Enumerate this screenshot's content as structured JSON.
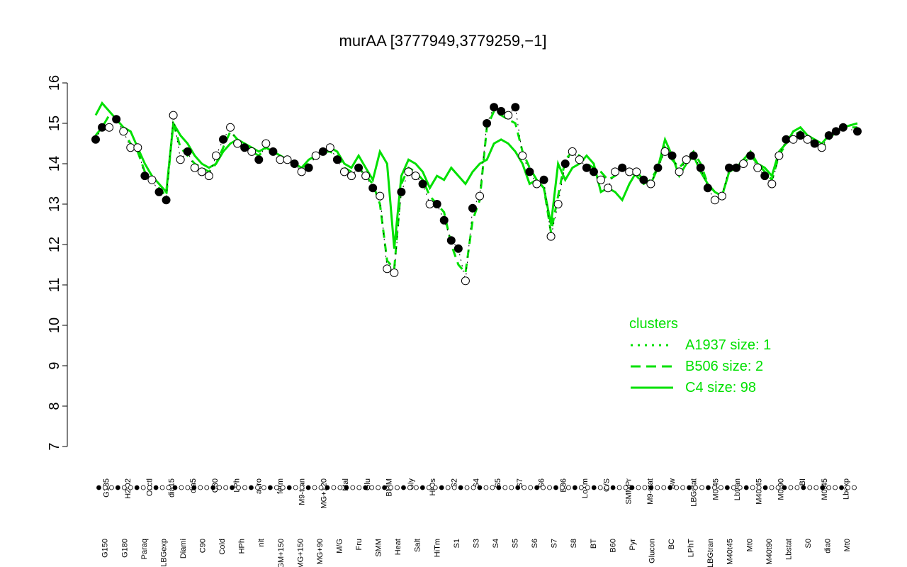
{
  "chart_data": {
    "type": "line",
    "title": "murAA [3777949,3779259,−1]",
    "xlabel": "",
    "ylabel": "",
    "ylim": [
      7,
      16
    ],
    "yticks": [
      7,
      8,
      9,
      10,
      11,
      12,
      13,
      14,
      15,
      16
    ],
    "colors": {
      "series": "#00e000",
      "points": "#000000"
    },
    "condition_labels_lower": [
      "G150",
      "G180",
      "Paraq",
      "LBGexp",
      "Diami",
      "C90",
      "Cold",
      "HPh",
      "nit",
      "GM+150",
      "MG+150",
      "MG+90",
      "M/G",
      "Fru",
      "SMM",
      "Heat",
      "Salt",
      "HiTm",
      "S1",
      "S3",
      "S4",
      "S5",
      "S6",
      "S7",
      "S8",
      "BT",
      "B60",
      "Pyr",
      "Glucon",
      "BC",
      "LPhT",
      "LBGtran",
      "M40t45",
      "Mt0",
      "M40t90",
      "Lbstat",
      "S0",
      "dia0",
      "Mt0"
    ],
    "condition_labels_upper": [
      "G135",
      "H2O2",
      "Oxctl",
      "dia15",
      "dia5",
      "C30",
      "LPh",
      "aero",
      "ferm",
      "M9-tran",
      "MG+120",
      "Mal",
      "Glu",
      "BMM",
      "Gly",
      "HiOs",
      "S2",
      "S4",
      "S5",
      "S7",
      "S6",
      "B36",
      "LoTm",
      "G/S",
      "SMMPr",
      "M9-stat",
      "Sw",
      "LBGstat",
      "M0t45",
      "Lbtran",
      "M40t45",
      "M0t90",
      "BI",
      "M0t45",
      "Lbexp"
    ],
    "series": [
      {
        "name": "C4 size: 98",
        "style": "solid",
        "x": [
          1,
          10,
          20,
          30,
          40,
          50,
          60,
          70,
          80,
          90,
          100,
          110,
          120,
          130,
          140,
          150,
          160,
          170,
          180,
          190,
          200,
          210,
          220,
          230,
          240,
          250,
          260,
          270,
          280,
          290,
          300,
          310,
          320,
          330,
          340,
          350,
          360,
          370,
          380,
          390,
          400,
          410,
          420,
          430,
          440,
          450,
          460,
          470,
          480,
          490,
          500,
          510,
          520,
          530,
          540,
          550,
          560,
          570,
          580,
          590,
          600,
          610,
          620,
          630,
          640,
          650,
          660,
          670,
          680,
          690,
          700,
          710,
          720,
          730,
          740,
          750,
          760,
          770,
          780,
          790,
          800,
          810,
          820,
          830,
          840,
          850,
          860,
          870,
          880,
          890,
          900,
          910,
          920,
          930,
          940,
          950,
          960,
          970,
          980,
          990,
          1000,
          1010,
          1020,
          1030,
          1040,
          1050,
          1070
        ],
        "values": [
          15.2,
          15.5,
          15.3,
          15.1,
          14.9,
          14.8,
          14.4,
          14.0,
          13.7,
          13.5,
          13.3,
          15.0,
          14.7,
          14.5,
          14.2,
          14.0,
          13.9,
          14.0,
          14.3,
          14.5,
          14.6,
          14.5,
          14.4,
          14.3,
          14.4,
          14.3,
          14.2,
          14.1,
          14.0,
          13.9,
          14.1,
          14.2,
          14.3,
          14.4,
          14.3,
          14.0,
          13.9,
          14.2,
          13.9,
          13.6,
          14.3,
          14.0,
          11.9,
          13.7,
          14.1,
          14.0,
          13.8,
          13.4,
          13.7,
          13.6,
          13.9,
          13.7,
          13.5,
          13.8,
          14.0,
          14.1,
          14.5,
          14.6,
          14.5,
          14.3,
          14.0,
          13.5,
          13.6,
          13.4,
          12.5,
          14.0,
          13.6,
          13.9,
          14.0,
          14.2,
          14.0,
          13.3,
          13.4,
          13.3,
          13.1,
          13.5,
          13.8,
          13.6,
          13.5,
          13.9,
          14.6,
          14.2,
          13.7,
          14.0,
          14.2,
          13.8,
          13.5,
          13.3,
          13.2,
          13.8,
          13.9,
          14.1,
          14.3,
          14.0,
          13.9,
          13.7,
          14.3,
          14.5,
          14.8,
          14.9,
          14.7,
          14.6,
          14.5,
          14.7,
          14.8,
          14.9,
          15.0
        ]
      },
      {
        "name": "B506 size: 2",
        "style": "dashed",
        "x": [
          1,
          10,
          20,
          30,
          40,
          50,
          60,
          70,
          80,
          90,
          100,
          110,
          120,
          130,
          140,
          150,
          160,
          170,
          180,
          190,
          200,
          210,
          220,
          230,
          240,
          250,
          260,
          270,
          280,
          290,
          300,
          310,
          320,
          330,
          340,
          350,
          360,
          370,
          380,
          390,
          400,
          410,
          420,
          430,
          440,
          450,
          460,
          470,
          480,
          490,
          500,
          510,
          520,
          530,
          540,
          550,
          560,
          570,
          580,
          590,
          600,
          610,
          620,
          630,
          640,
          650,
          660,
          670,
          680,
          690,
          700,
          710,
          720,
          730,
          740,
          750,
          760,
          770,
          780,
          790,
          800,
          810,
          820,
          830,
          840,
          850,
          860,
          870,
          880,
          890,
          900,
          910,
          920,
          930,
          940,
          950,
          960,
          970,
          980,
          990,
          1000,
          1010,
          1020,
          1030,
          1040,
          1050,
          1070
        ],
        "values": [
          14.7,
          14.9,
          15.2,
          15.1,
          14.8,
          14.5,
          14.3,
          13.8,
          13.6,
          13.4,
          13.2,
          15.0,
          14.4,
          14.2,
          14.0,
          13.9,
          13.8,
          14.0,
          14.4,
          14.8,
          14.6,
          14.5,
          14.3,
          14.2,
          14.4,
          14.3,
          14.2,
          14.1,
          14.0,
          13.9,
          14.0,
          14.2,
          14.3,
          14.3,
          14.2,
          13.9,
          13.8,
          13.9,
          13.7,
          13.5,
          13.0,
          11.6,
          11.4,
          13.5,
          13.9,
          13.8,
          13.6,
          13.2,
          13.0,
          12.8,
          12.0,
          11.5,
          11.3,
          12.6,
          13.1,
          14.9,
          15.3,
          15.2,
          15.1,
          15.0,
          14.3,
          13.9,
          13.6,
          13.4,
          12.3,
          13.2,
          14.1,
          14.3,
          14.2,
          14.0,
          13.9,
          13.8,
          13.6,
          13.7,
          13.9,
          13.8,
          13.7,
          13.5,
          13.6,
          13.9,
          14.4,
          14.1,
          13.9,
          14.1,
          14.3,
          14.0,
          13.5,
          13.3,
          13.2,
          13.8,
          13.9,
          14.0,
          14.2,
          14.0,
          13.8,
          13.6,
          14.2,
          14.5,
          14.7,
          14.8,
          14.6,
          14.5,
          14.4,
          14.6,
          14.8,
          14.9,
          14.9
        ]
      },
      {
        "name": "A1937 size: 1",
        "style": "dotted",
        "x": [
          1,
          10,
          20,
          30,
          40,
          50,
          60,
          70,
          80,
          90,
          100,
          110,
          120,
          130,
          140,
          150,
          160,
          170,
          180,
          190,
          200,
          210,
          220,
          230,
          240,
          250,
          260,
          270,
          280,
          290,
          300,
          310,
          320,
          330,
          340,
          350,
          360,
          370,
          380,
          390,
          400,
          410,
          420,
          430,
          440,
          450,
          460,
          470,
          480,
          490,
          500,
          510,
          520,
          530,
          540,
          550,
          560,
          570,
          580,
          590,
          600,
          610,
          620,
          630,
          640,
          650,
          660,
          670,
          680,
          690,
          700,
          710,
          720,
          730,
          740,
          750,
          760,
          770,
          780,
          790,
          800,
          810,
          820,
          830,
          840,
          850,
          860,
          870,
          880,
          890,
          900,
          910,
          920,
          930,
          940,
          950,
          960,
          970,
          980,
          990,
          1000,
          1010,
          1020,
          1030,
          1040,
          1050,
          1070
        ],
        "values": [
          14.6,
          14.9,
          14.9,
          15.1,
          14.8,
          14.4,
          14.4,
          13.7,
          13.6,
          13.3,
          13.1,
          15.2,
          14.1,
          14.3,
          13.9,
          13.8,
          13.7,
          14.2,
          14.6,
          14.9,
          14.5,
          14.4,
          14.3,
          14.1,
          14.5,
          14.3,
          14.1,
          14.1,
          14.0,
          13.8,
          13.9,
          14.2,
          14.3,
          14.4,
          14.1,
          13.8,
          13.7,
          13.9,
          13.7,
          13.4,
          13.2,
          11.4,
          11.3,
          13.3,
          13.8,
          13.7,
          13.5,
          13.0,
          13.0,
          12.6,
          12.1,
          11.9,
          11.1,
          12.9,
          13.2,
          15.0,
          15.4,
          15.3,
          15.2,
          15.4,
          14.2,
          13.8,
          13.5,
          13.6,
          12.2,
          13.0,
          14.0,
          14.3,
          14.1,
          13.9,
          13.8,
          13.6,
          13.4,
          13.8,
          13.9,
          13.8,
          13.8,
          13.6,
          13.5,
          13.9,
          14.3,
          14.2,
          13.8,
          14.1,
          14.2,
          13.9,
          13.4,
          13.1,
          13.2,
          13.9,
          13.9,
          14.0,
          14.2,
          13.9,
          13.7,
          13.5,
          14.2,
          14.6,
          14.6,
          14.7,
          14.6,
          14.5,
          14.4,
          14.7,
          14.8,
          14.9,
          14.8
        ]
      }
    ],
    "points": {
      "x": [
        1,
        10,
        20,
        30,
        40,
        50,
        60,
        70,
        80,
        90,
        100,
        110,
        120,
        130,
        140,
        150,
        160,
        170,
        180,
        190,
        200,
        210,
        220,
        230,
        240,
        250,
        260,
        270,
        280,
        290,
        300,
        310,
        320,
        330,
        340,
        350,
        360,
        370,
        380,
        390,
        400,
        410,
        420,
        430,
        440,
        450,
        460,
        470,
        480,
        490,
        500,
        510,
        520,
        530,
        540,
        550,
        560,
        570,
        580,
        590,
        600,
        610,
        620,
        630,
        640,
        650,
        660,
        670,
        680,
        690,
        700,
        710,
        720,
        730,
        740,
        750,
        760,
        770,
        780,
        790,
        800,
        810,
        820,
        830,
        840,
        850,
        860,
        870,
        880,
        890,
        900,
        910,
        920,
        930,
        940,
        950,
        960,
        970,
        980,
        990,
        1000,
        1010,
        1020,
        1030,
        1040,
        1050,
        1070
      ],
      "values": [
        14.6,
        14.9,
        14.9,
        15.1,
        14.8,
        14.4,
        14.4,
        13.7,
        13.6,
        13.3,
        13.1,
        15.2,
        14.1,
        14.3,
        13.9,
        13.8,
        13.7,
        14.2,
        14.6,
        14.9,
        14.5,
        14.4,
        14.3,
        14.1,
        14.5,
        14.3,
        14.1,
        14.1,
        14.0,
        13.8,
        13.9,
        14.2,
        14.3,
        14.4,
        14.1,
        13.8,
        13.7,
        13.9,
        13.7,
        13.4,
        13.2,
        11.4,
        11.3,
        13.3,
        13.8,
        13.7,
        13.5,
        13.0,
        13.0,
        12.6,
        12.1,
        11.9,
        11.1,
        12.9,
        13.2,
        15.0,
        15.4,
        15.3,
        15.2,
        15.4,
        14.2,
        13.8,
        13.5,
        13.6,
        12.2,
        13.0,
        14.0,
        14.3,
        14.1,
        13.9,
        13.8,
        13.6,
        13.4,
        13.8,
        13.9,
        13.8,
        13.8,
        13.6,
        13.5,
        13.9,
        14.3,
        14.2,
        13.8,
        14.1,
        14.2,
        13.9,
        13.4,
        13.1,
        13.2,
        13.9,
        13.9,
        14.0,
        14.2,
        13.9,
        13.7,
        13.5,
        14.2,
        14.6,
        14.6,
        14.7,
        14.6,
        14.5,
        14.4,
        14.7,
        14.8,
        14.9,
        14.8
      ],
      "filled": [
        true,
        true,
        false,
        true,
        false,
        false,
        false,
        true,
        false,
        true,
        true,
        false,
        false,
        true,
        false,
        false,
        false,
        false,
        true,
        false,
        false,
        true,
        false,
        true,
        false,
        true,
        false,
        false,
        true,
        false,
        true,
        false,
        true,
        false,
        true,
        false,
        false,
        true,
        false,
        true,
        false,
        false,
        false,
        true,
        false,
        false,
        true,
        false,
        true,
        true,
        true,
        true,
        false,
        true,
        false,
        true,
        true,
        true,
        false,
        true,
        false,
        true,
        false,
        true,
        false,
        false,
        true,
        false,
        false,
        true,
        true,
        false,
        false,
        false,
        true,
        false,
        false,
        true,
        false,
        true,
        false,
        true,
        false,
        false,
        true,
        true,
        true,
        false,
        false,
        true,
        true,
        false,
        true,
        false,
        true,
        false,
        false,
        true,
        false,
        true,
        false,
        true,
        false,
        true,
        true,
        true,
        true
      ]
    },
    "legend": {
      "title": "clusters",
      "position": "bottom-right",
      "entries": [
        {
          "label": "A1937 size: 1",
          "style": "dotted"
        },
        {
          "label": "B506 size: 2",
          "style": "dashed"
        },
        {
          "label": "C4 size: 98",
          "style": "solid"
        }
      ]
    }
  }
}
